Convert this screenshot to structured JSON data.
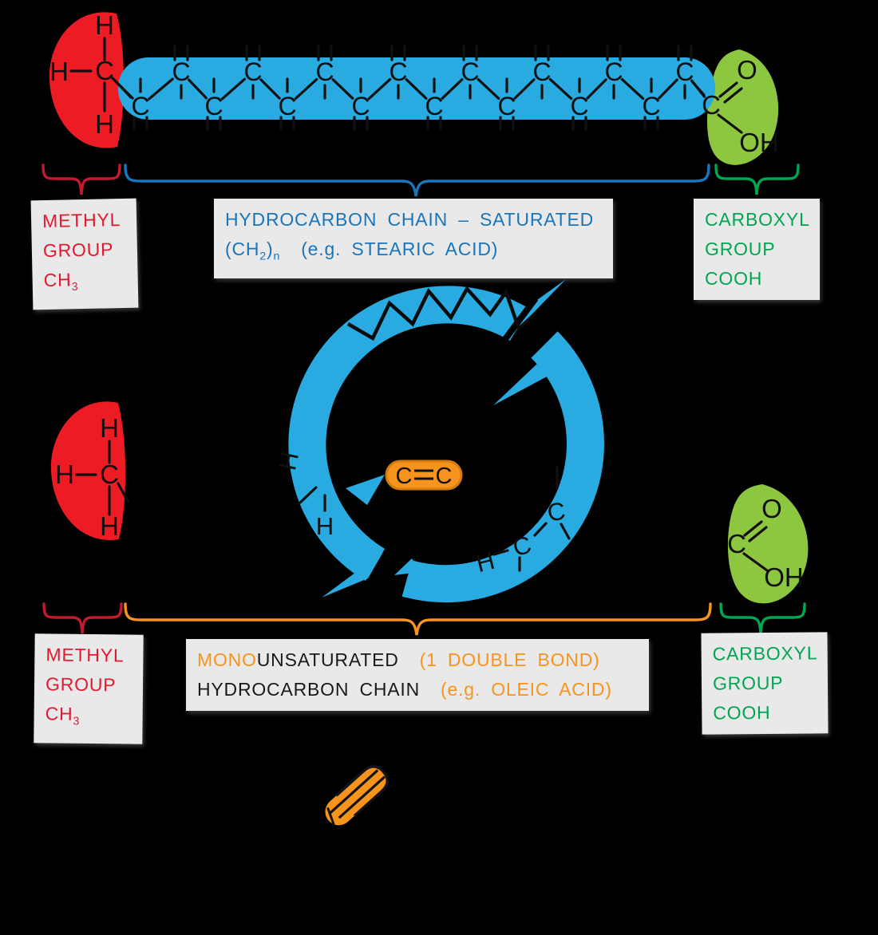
{
  "symbols": {
    "carbon": "C",
    "hydrogen": "H",
    "oxygen": "O",
    "hydroxyl": "OH"
  },
  "labels": {
    "methyl": {
      "line1": "METHYL",
      "line2": "GROUP",
      "formula_base": "CH",
      "formula_sub": "3"
    },
    "saturated_chain": {
      "line1": "HYDROCARBON  CHAIN – SATURATED",
      "formula_open": "(CH",
      "formula_sub2": "2",
      "formula_close": ")",
      "formula_subn": "n",
      "example": "(e.g.  STEARIC  ACID)"
    },
    "carboxyl": {
      "line1": "CARBOXYL",
      "line2": "GROUP",
      "line3": "COOH"
    },
    "mono_chain": {
      "prefix": "MONO",
      "rest": "UNSATURATED",
      "bond_note": "(1  DOUBLE  BOND)",
      "line2_black": "HYDROCARBON  CHAIN",
      "line2_orange": "(e.g. OLEIC  ACID)"
    }
  },
  "colors": {
    "chain_blue": "#29abe2",
    "methyl_red": "#ed1c24",
    "carboxyl_green": "#8dc63f",
    "highlight_orange": "#f7941d",
    "text_blue": "#1b75bb",
    "text_red": "#e11931",
    "text_green": "#00a651",
    "text_orange": "#f7941d",
    "text_black": "#1a1a1a",
    "brace_red": "#c21b2f",
    "box_bg": "#e9e9e9"
  }
}
